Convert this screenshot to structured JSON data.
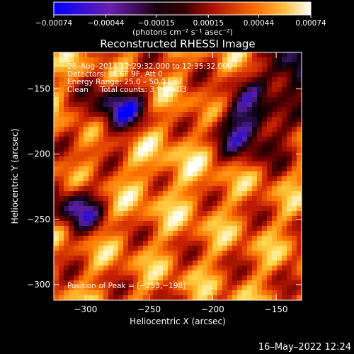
{
  "chart_data": {
    "type": "heatmap",
    "title": "Reconstructed RHESSI Image",
    "xlabel": "Heliocentric X (arcsec)",
    "ylabel": "Heliocentric Y (arcsec)",
    "xlim": [
      -325,
      -130
    ],
    "ylim": [
      -312,
      -122
    ],
    "x_ticks": [
      -300,
      -250,
      -200,
      -150
    ],
    "x_tick_labels": [
      "−300",
      "−250",
      "−200",
      "−150"
    ],
    "y_ticks": [
      -150,
      -200,
      -250,
      -300
    ],
    "y_tick_labels": [
      "−150",
      "−200",
      "−250",
      "−300"
    ],
    "colorbar": {
      "min": -0.00074,
      "max": 0.00074,
      "ticks": [
        -0.00074,
        -0.00044,
        -0.00015,
        0.00015,
        0.00044,
        0.00074
      ],
      "tick_labels": [
        "−0.00074",
        "−0.00044",
        "−0.00015",
        "0.00015",
        "0.00044",
        "0.00074"
      ],
      "unit_label": "(photons cm⁻² s⁻¹ asec⁻²)"
    },
    "annotations": [
      "28–Aug–2014 12:29:32.000 to 12:35:32.000",
      "Detectors: 3F 6F 9F, Att 0",
      "Energy Range: 25.0 – 50.0 keV",
      "Clean     Total counts: 3.94E+03"
    ],
    "peak_label": "Position of Peak = [−253,−198]",
    "peak": [
      -253,
      -198
    ],
    "colormap": [
      "#0000ff",
      "#5b1fa0",
      "#000000",
      "#6a0000",
      "#cc2200",
      "#ff7a00",
      "#ffd84a",
      "#ffffff"
    ]
  },
  "footer": {
    "timestamp": "16–May–2022 12:24"
  }
}
